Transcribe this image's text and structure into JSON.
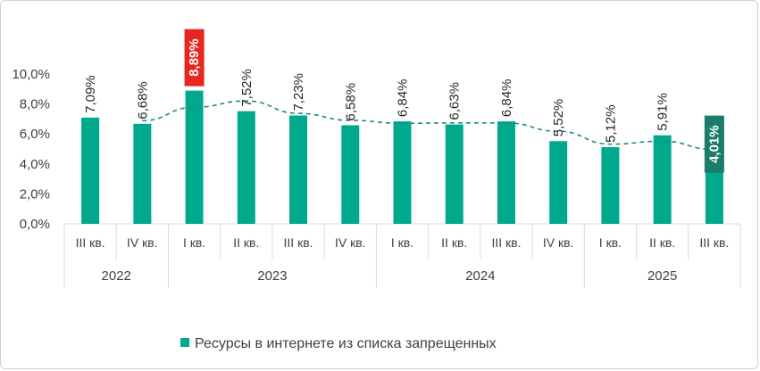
{
  "chart_data": {
    "type": "bar",
    "ylim": [
      0,
      10
    ],
    "yticks": [
      "0,0%",
      "2,0%",
      "4,0%",
      "6,0%",
      "8,0%",
      "10,0%"
    ],
    "categories": [
      "III кв.",
      "IV кв.",
      "I кв.",
      "II кв.",
      "III кв.",
      "IV кв.",
      "I кв.",
      "II кв.",
      "III кв.",
      "IV кв.",
      "I кв.",
      "II кв.",
      "III кв."
    ],
    "groups": [
      {
        "label": "2022",
        "count": 2
      },
      {
        "label": "2023",
        "count": 4
      },
      {
        "label": "2024",
        "count": 4
      },
      {
        "label": "2025",
        "count": 3
      }
    ],
    "series": [
      {
        "name": "Ресурсы в интернете из списка запрещенных",
        "values": [
          7.09,
          6.68,
          8.89,
          7.52,
          7.23,
          6.58,
          6.84,
          6.63,
          6.84,
          5.52,
          5.12,
          5.91,
          4.01
        ],
        "labels": [
          "7,09%",
          "6,68%",
          "8,89%",
          "7,52%",
          "7,23%",
          "6,58%",
          "6,84%",
          "6,63%",
          "6,84%",
          "5,52%",
          "5,12%",
          "5,91%",
          "4,01%"
        ]
      }
    ],
    "trendline": true,
    "highlight_max_index": 2,
    "highlight_last_index": 12,
    "grid": false,
    "legend_position": "bottom",
    "colors": {
      "bar": "#00A88E",
      "trend": "#1F8F79",
      "highlight_max": "#E8251F",
      "highlight_last": "#1A7D6C"
    }
  }
}
